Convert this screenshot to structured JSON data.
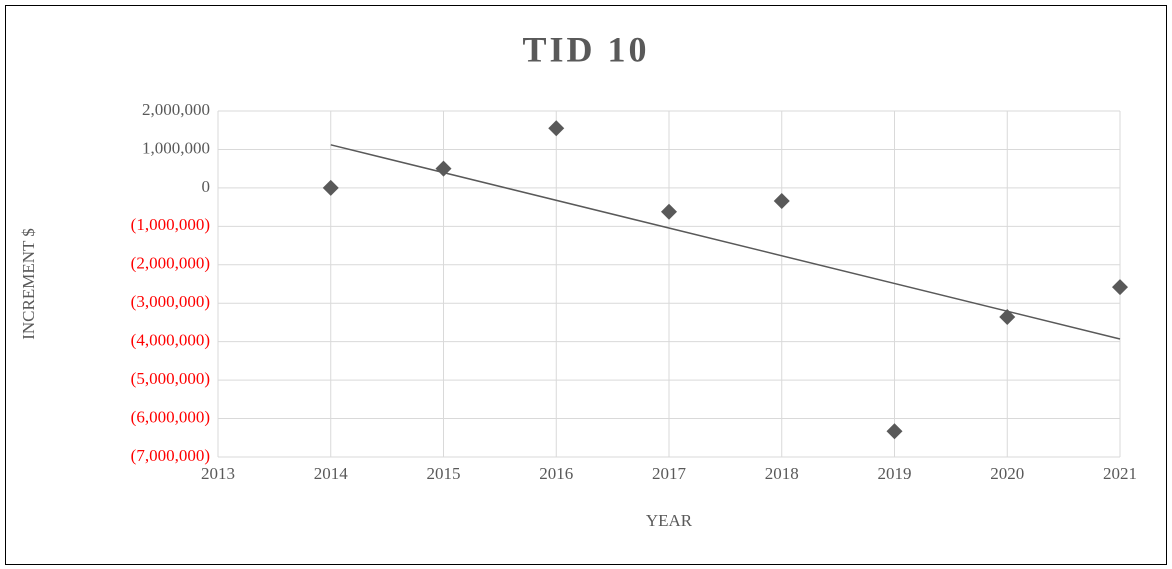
{
  "chart_data": {
    "type": "scatter",
    "title": "TID 10",
    "x_label": "YEAR",
    "y_label": "INCREMENT $",
    "series": [
      {
        "color": "#595959",
        "x": [
          2014,
          2015,
          2016,
          2017,
          2018,
          2019,
          2020,
          2021
        ],
        "values": [
          0,
          500000,
          1550000,
          -620000,
          -340000,
          -6330000,
          -3360000,
          -2580000
        ]
      }
    ],
    "trendline": {
      "color": "#595959",
      "x": [
        2014,
        2021
      ],
      "values": [
        1120000,
        -3930000
      ]
    },
    "xlim": [
      2013,
      2021
    ],
    "xticks": [
      2013,
      2014,
      2015,
      2016,
      2017,
      2018,
      2019,
      2020,
      2021
    ],
    "ylim": [
      -7000000,
      2000000
    ],
    "yticks": [
      {
        "value": -7000000,
        "label": "(7,000,000)"
      },
      {
        "value": -6000000,
        "label": "(6,000,000)"
      },
      {
        "value": -5000000,
        "label": "(5,000,000)"
      },
      {
        "value": -4000000,
        "label": "(4,000,000)"
      },
      {
        "value": -3000000,
        "label": "(3,000,000)"
      },
      {
        "value": -2000000,
        "label": "(2,000,000)"
      },
      {
        "value": -1000000,
        "label": "(1,000,000)"
      },
      0,
      {
        "value": 1000000,
        "label": "1,000,000"
      },
      {
        "value": 2000000,
        "label": "2,000,000"
      }
    ],
    "negative_tick_color": "#ff0000",
    "grid": true
  }
}
